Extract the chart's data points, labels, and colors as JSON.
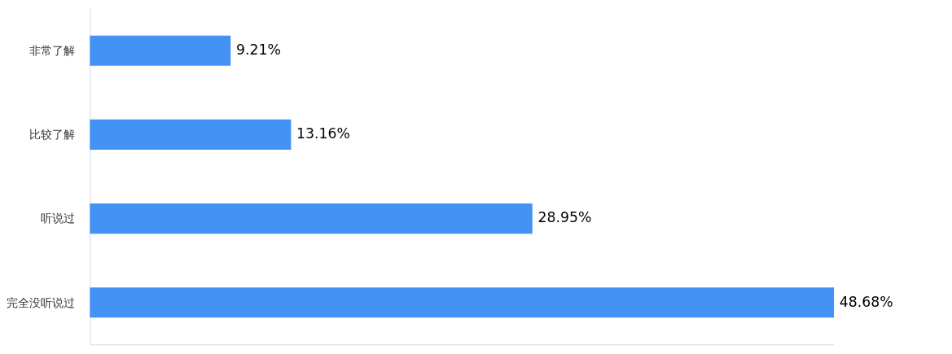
{
  "chart_data": {
    "type": "bar",
    "orientation": "horizontal",
    "categories": [
      "非常了解",
      "比较了解",
      "听说过",
      "完全没听说过"
    ],
    "values": [
      9.21,
      13.16,
      28.95,
      48.68
    ],
    "value_labels": [
      "9.21%",
      "13.16%",
      "28.95%",
      "48.68%"
    ],
    "color": "#4592f5",
    "tick_labels": "y",
    "grid": false
  }
}
